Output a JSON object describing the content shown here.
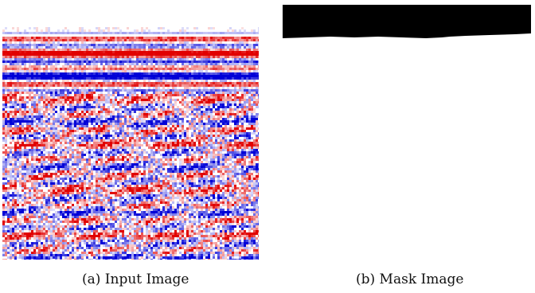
{
  "figure": {
    "caption_a": "(a) Input Image",
    "caption_b": "(b) Mask Image"
  },
  "colors": {
    "seismic_red": "#e8202a",
    "seismic_blue": "#1a1fd6",
    "seismic_white": "#ffffff",
    "mask_fill": "#000000",
    "background": "#ffffff"
  }
}
